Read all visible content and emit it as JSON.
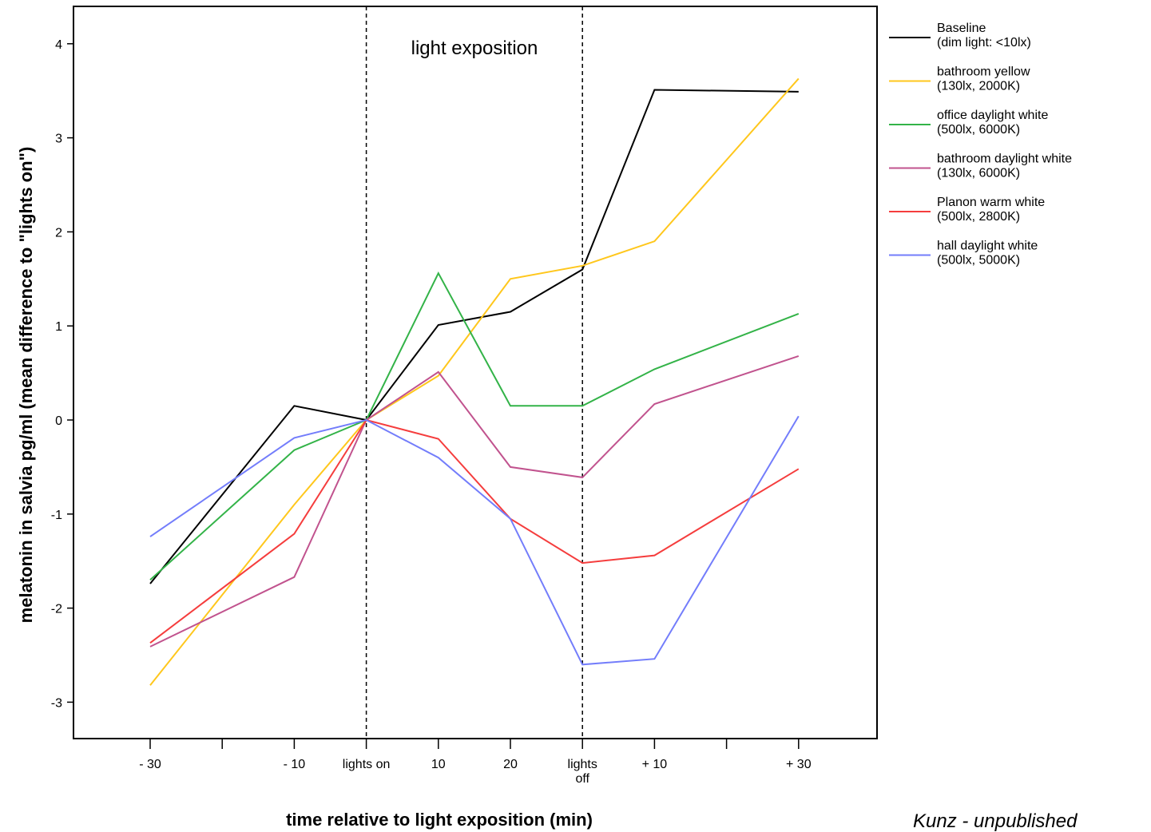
{
  "chart_data": {
    "type": "line",
    "xlabel": "time relative to light exposition (min)",
    "ylabel": "melatonin in salvia pg/ml (mean difference to \"lights on\")",
    "ylim": [
      -3.4,
      4.4
    ],
    "yticks": [
      -3,
      -2,
      -1,
      0,
      1,
      2,
      3,
      4
    ],
    "x_positions": [
      0,
      1,
      2,
      3,
      4,
      5,
      6,
      7,
      8,
      9
    ],
    "x_tick_labels": [
      {
        "pos": 0,
        "lines": [
          "- 30"
        ]
      },
      {
        "pos": 1,
        "lines": [
          ""
        ]
      },
      {
        "pos": 2,
        "lines": [
          "- 10"
        ]
      },
      {
        "pos": 3,
        "lines": [
          "lights on"
        ]
      },
      {
        "pos": 4,
        "lines": [
          "10"
        ]
      },
      {
        "pos": 5,
        "lines": [
          "20"
        ]
      },
      {
        "pos": 6,
        "lines": [
          "lights",
          "off"
        ]
      },
      {
        "pos": 7,
        "lines": [
          "+ 10"
        ]
      },
      {
        "pos": 8,
        "lines": [
          ""
        ]
      },
      {
        "pos": 9,
        "lines": [
          "+ 30"
        ]
      }
    ],
    "x_data_positions": [
      0,
      2,
      3,
      4,
      5,
      6,
      7,
      9
    ],
    "vertical_lines": [
      3,
      6
    ],
    "annotation": "light exposition",
    "grid": false,
    "legend_placement": "right-top",
    "series": [
      {
        "name": "Baseline",
        "name_line2": "(dim light: <10lx)",
        "color": "#000000",
        "values": [
          -1.74,
          0.15,
          0.0,
          1.01,
          1.15,
          1.6,
          3.51,
          3.49
        ]
      },
      {
        "name": "bathroom yellow",
        "name_line2": "(130lx, 2000K)",
        "color": "#ffc71c",
        "values": [
          -2.82,
          -0.9,
          0.0,
          0.47,
          1.5,
          1.64,
          1.9,
          3.63
        ]
      },
      {
        "name": "office daylight white",
        "name_line2": "(500lx, 6000K)",
        "color": "#33b348",
        "values": [
          -1.7,
          -0.32,
          0.0,
          1.56,
          0.15,
          0.15,
          0.54,
          1.13
        ]
      },
      {
        "name": "bathroom daylight white",
        "name_line2": "(130lx, 6000K)",
        "color": "#c1538e",
        "values": [
          -2.41,
          -1.67,
          0.0,
          0.51,
          -0.5,
          -0.61,
          0.17,
          0.68
        ]
      },
      {
        "name": "Planon warm white",
        "name_line2": "(500lx, 2800K)",
        "color": "#f53d3d",
        "values": [
          -2.37,
          -1.21,
          0.0,
          -0.2,
          -1.05,
          -1.52,
          -1.44,
          -0.52
        ]
      },
      {
        "name": "hall daylight white",
        "name_line2": "(500lx, 5000K)",
        "color": "#737dfb",
        "values": [
          -1.24,
          -0.19,
          0.0,
          -0.4,
          -1.05,
          -2.6,
          -2.54,
          0.04
        ]
      }
    ]
  },
  "credit": "Kunz - unpublished"
}
